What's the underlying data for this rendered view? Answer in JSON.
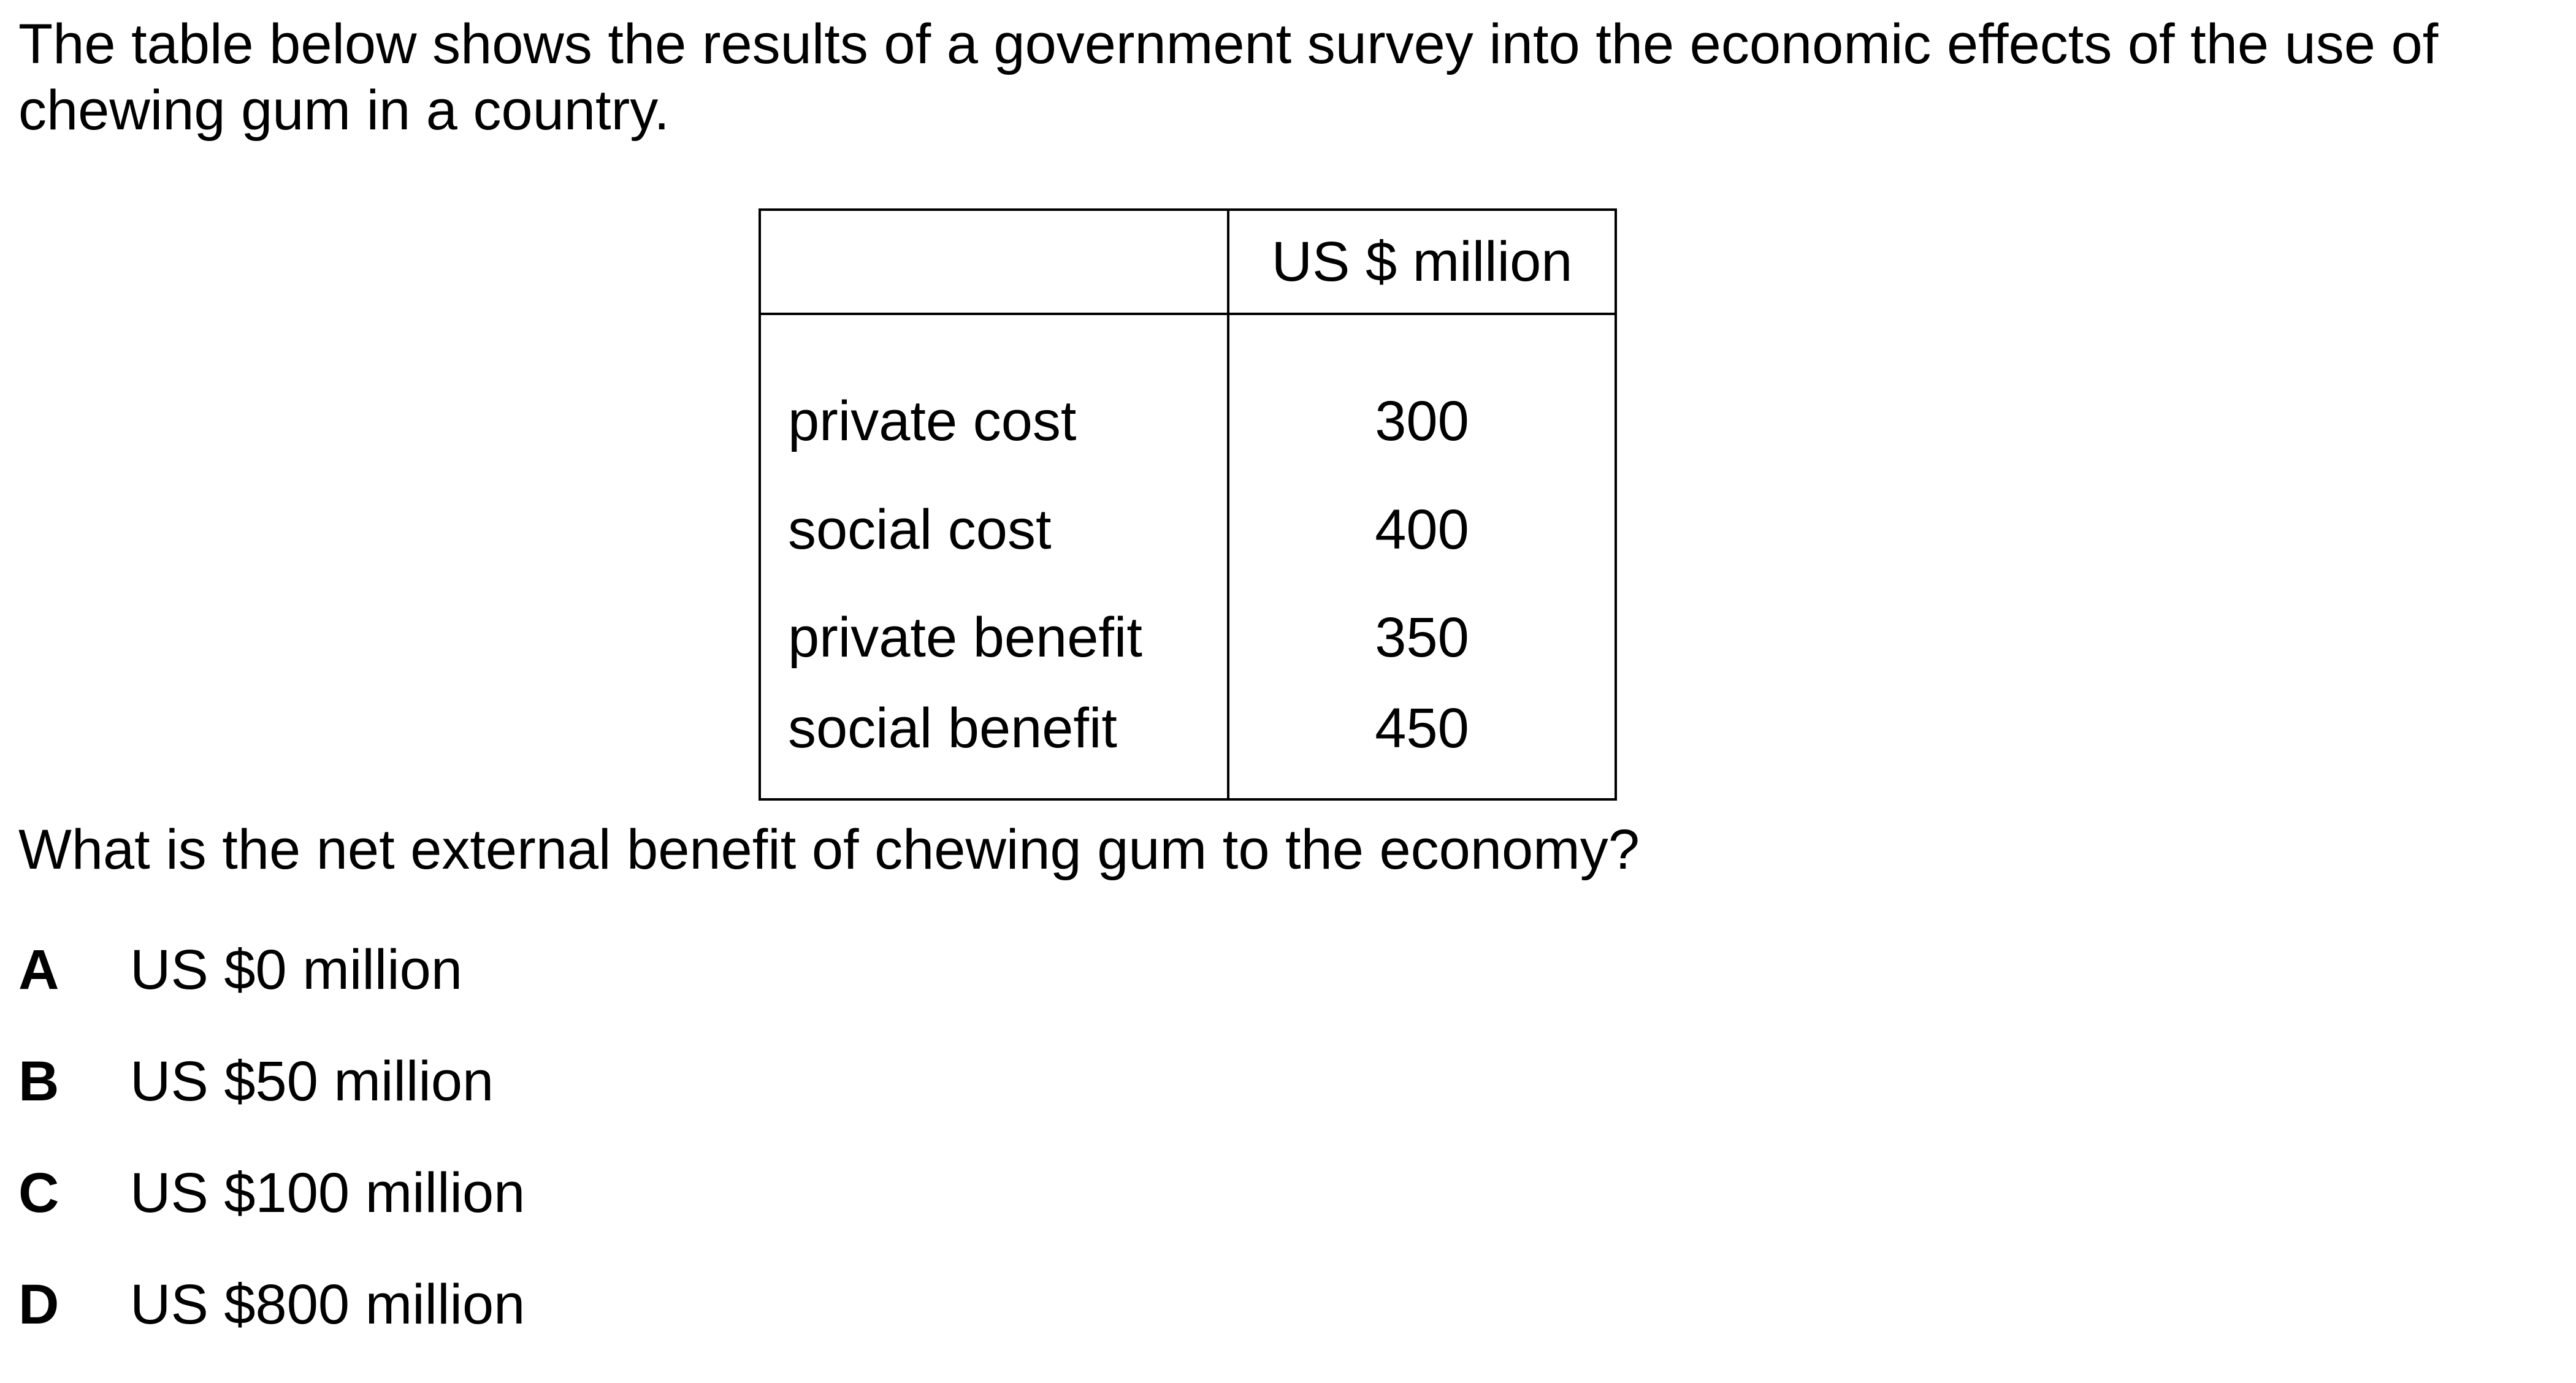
{
  "intro_text": "The table below shows the results of a government survey into the economic effects of the use of chewing gum in a country.",
  "table": {
    "header_label": "",
    "header_value": "US $ million",
    "rows": [
      {
        "label": "private cost",
        "value": "300"
      },
      {
        "label": "social cost",
        "value": "400"
      },
      {
        "label": "private benefit",
        "value": "350"
      },
      {
        "label": "social benefit",
        "value": "450"
      }
    ]
  },
  "question": "What is the net external benefit of chewing gum to the economy?",
  "options": [
    {
      "letter": "A",
      "text": "US $0 million"
    },
    {
      "letter": "B",
      "text": "US $50 million"
    },
    {
      "letter": "C",
      "text": "US $100 million"
    },
    {
      "letter": "D",
      "text": "US $800 million"
    }
  ]
}
